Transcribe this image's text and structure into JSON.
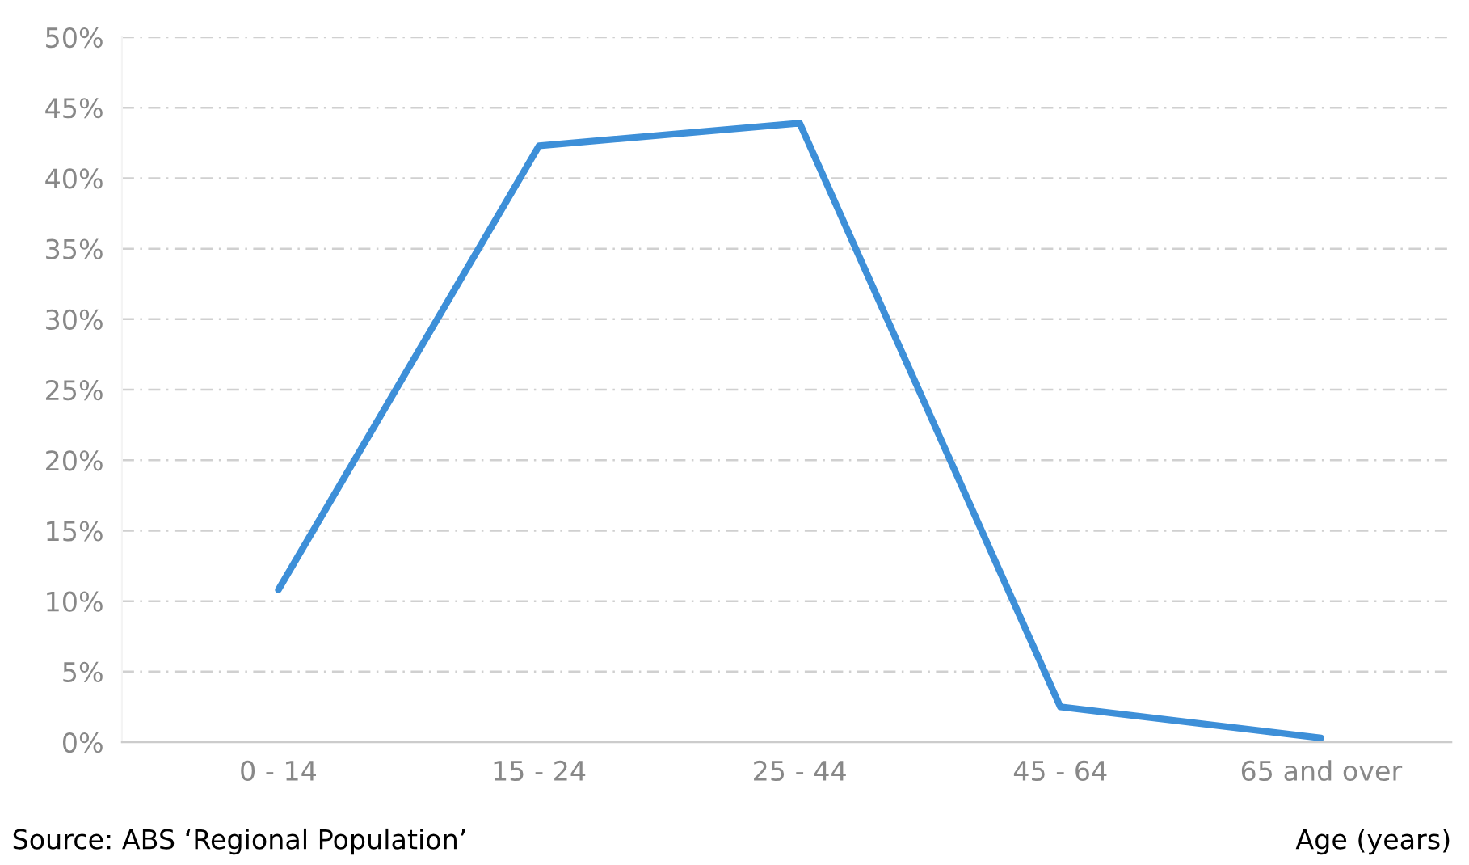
{
  "chart_data": {
    "type": "line",
    "categories": [
      "0 - 14",
      "15 - 24",
      "25 - 44",
      "45 - 64",
      "65 and over"
    ],
    "series": [
      {
        "color": "#3d8fd8",
        "values": [
          10.8,
          42.3,
          43.9,
          2.5,
          0.3
        ]
      }
    ],
    "ylim": [
      0,
      50
    ],
    "yticks": [
      {
        "value": 0,
        "label": "0%"
      },
      {
        "value": 5,
        "label": "5%"
      },
      {
        "value": 10,
        "label": "10%"
      },
      {
        "value": 15,
        "label": "15%"
      },
      {
        "value": 20,
        "label": "20%"
      },
      {
        "value": 25,
        "label": "25%"
      },
      {
        "value": 30,
        "label": "30%"
      },
      {
        "value": 35,
        "label": "35%"
      },
      {
        "value": 40,
        "label": "40%"
      },
      {
        "value": 45,
        "label": "45%"
      },
      {
        "value": 50,
        "label": "50%"
      }
    ],
    "grid": "y",
    "marker": "none",
    "line_style": "solid",
    "xlabel": "Age (years)",
    "annotations": [
      "Source: ABS ‘Regional Population’"
    ]
  }
}
